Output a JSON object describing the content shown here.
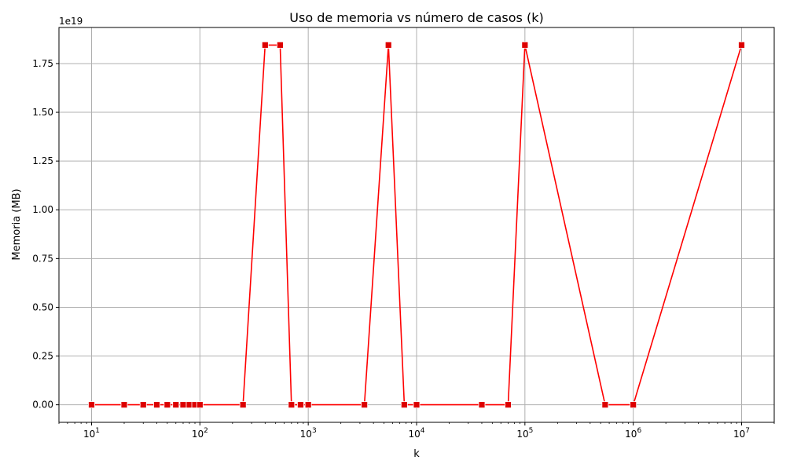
{
  "chart_data": {
    "type": "line",
    "title": "Uso de memoria vs número de casos (k)",
    "xlabel": "k",
    "ylabel": "Memoria (MB)",
    "x_scale": "log",
    "xlim": [
      5,
      20000000
    ],
    "ylim": [
      -0.09,
      1.935
    ],
    "y_multiplier_label": "1e19",
    "grid": true,
    "colors": {
      "line": "#ff0000",
      "marker": "#dd0000",
      "grid": "#b0b0b0",
      "axis": "#000000"
    },
    "x_ticks": [
      {
        "value": 10,
        "base": "10",
        "exp": "1"
      },
      {
        "value": 100,
        "base": "10",
        "exp": "2"
      },
      {
        "value": 1000,
        "base": "10",
        "exp": "3"
      },
      {
        "value": 10000,
        "base": "10",
        "exp": "4"
      },
      {
        "value": 100000,
        "base": "10",
        "exp": "5"
      },
      {
        "value": 1000000,
        "base": "10",
        "exp": "6"
      },
      {
        "value": 10000000,
        "base": "10",
        "exp": "7"
      }
    ],
    "y_ticks": [
      {
        "value": 0.0,
        "label": "0.00"
      },
      {
        "value": 0.25,
        "label": "0.25"
      },
      {
        "value": 0.5,
        "label": "0.50"
      },
      {
        "value": 0.75,
        "label": "0.75"
      },
      {
        "value": 1.0,
        "label": "1.00"
      },
      {
        "value": 1.25,
        "label": "1.25"
      },
      {
        "value": 1.5,
        "label": "1.50"
      },
      {
        "value": 1.75,
        "label": "1.75"
      }
    ],
    "series": [
      {
        "marker": "square",
        "points": [
          {
            "x": 10,
            "y": 0
          },
          {
            "x": 20,
            "y": 0
          },
          {
            "x": 30,
            "y": 0
          },
          {
            "x": 40,
            "y": 0
          },
          {
            "x": 50,
            "y": 0
          },
          {
            "x": 60,
            "y": 0
          },
          {
            "x": 70,
            "y": 0
          },
          {
            "x": 80,
            "y": 0
          },
          {
            "x": 90,
            "y": 0
          },
          {
            "x": 100,
            "y": 0
          },
          {
            "x": 250,
            "y": 0
          },
          {
            "x": 400,
            "y": 1.845
          },
          {
            "x": 550,
            "y": 1.845
          },
          {
            "x": 700,
            "y": 0
          },
          {
            "x": 850,
            "y": 0
          },
          {
            "x": 1000,
            "y": 0
          },
          {
            "x": 3300,
            "y": 0
          },
          {
            "x": 5500,
            "y": 1.845
          },
          {
            "x": 7700,
            "y": 0
          },
          {
            "x": 10000,
            "y": 0
          },
          {
            "x": 40000,
            "y": 0
          },
          {
            "x": 70000,
            "y": 0
          },
          {
            "x": 100000,
            "y": 1.845
          },
          {
            "x": 550000,
            "y": 0
          },
          {
            "x": 1000000,
            "y": 0
          },
          {
            "x": 10000000,
            "y": 1.845
          }
        ]
      }
    ]
  }
}
